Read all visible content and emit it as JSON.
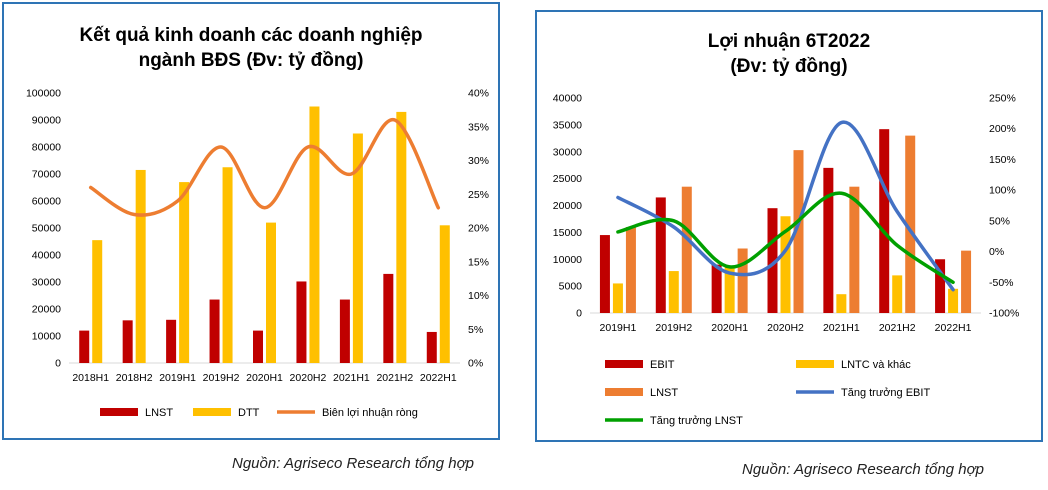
{
  "chart_data": [
    {
      "type": "bar",
      "title_line1": "Kết quả kinh doanh các doanh nghiệp",
      "title_line2": "ngành BĐS (Đv: tỷ đồng)",
      "categories": [
        "2018H1",
        "2018H2",
        "2019H1",
        "2019H2",
        "2020H1",
        "2020H2",
        "2021H1",
        "2021H2",
        "2022H1"
      ],
      "series": [
        {
          "name": "LNST",
          "type": "bar",
          "axis": "left",
          "color": "#C00000",
          "values": [
            12000,
            15800,
            16000,
            23500,
            12000,
            30200,
            23500,
            33000,
            11500
          ]
        },
        {
          "name": "DTT",
          "type": "bar",
          "axis": "left",
          "color": "#FFC000",
          "values": [
            45500,
            71500,
            67000,
            72500,
            52000,
            95000,
            85000,
            93000,
            51000
          ]
        },
        {
          "name": "Biên lợi nhuận ròng",
          "type": "line",
          "axis": "right",
          "color": "#ED7D31",
          "values": [
            0.26,
            0.22,
            0.24,
            0.32,
            0.23,
            0.32,
            0.28,
            0.36,
            0.23
          ]
        }
      ],
      "y_left": {
        "min": 0,
        "max": 100000,
        "ticks": [
          "0",
          "10000",
          "20000",
          "30000",
          "40000",
          "50000",
          "60000",
          "70000",
          "80000",
          "90000",
          "100000"
        ]
      },
      "y_right": {
        "min": 0,
        "max": 0.4,
        "ticks": [
          "0%",
          "5%",
          "10%",
          "15%",
          "20%",
          "25%",
          "30%",
          "35%",
          "40%"
        ]
      },
      "grid": false,
      "legend": "bottom"
    },
    {
      "type": "bar",
      "title_line1": "Lợi nhuận 6T2022",
      "title_line2": "(Đv: tỷ đồng)",
      "categories": [
        "2019H1",
        "2019H2",
        "2020H1",
        "2020H2",
        "2021H1",
        "2021H2",
        "2022H1"
      ],
      "series": [
        {
          "name": "EBIT",
          "type": "bar",
          "axis": "left",
          "color": "#C00000",
          "values": [
            14500,
            21500,
            9000,
            19500,
            27000,
            34200,
            10000
          ]
        },
        {
          "name": "LNTC và khác",
          "type": "bar",
          "axis": "left",
          "color": "#FFC000",
          "values": [
            5500,
            7800,
            8500,
            18000,
            3500,
            7000,
            4500
          ]
        },
        {
          "name": "LNST",
          "type": "bar",
          "axis": "left",
          "color": "#ED7D31",
          "values": [
            16000,
            23500,
            12000,
            30300,
            23500,
            33000,
            11600
          ]
        },
        {
          "name": "Tăng trưởng EBIT",
          "type": "line",
          "axis": "right",
          "color": "#4472C4",
          "values": [
            0.88,
            0.4,
            -0.35,
            0.02,
            2.1,
            0.65,
            -0.62
          ]
        },
        {
          "name": "Tăng trưởng LNST",
          "type": "line",
          "axis": "right",
          "color": "#00A000",
          "values": [
            0.32,
            0.5,
            -0.25,
            0.33,
            0.95,
            0.1,
            -0.5
          ]
        }
      ],
      "y_left": {
        "min": 0,
        "max": 40000,
        "ticks": [
          "0",
          "5000",
          "10000",
          "15000",
          "20000",
          "25000",
          "30000",
          "35000",
          "40000"
        ]
      },
      "y_right": {
        "min": -1,
        "max": 2.5,
        "ticks": [
          "-100%",
          "-50%",
          "0%",
          "50%",
          "100%",
          "150%",
          "200%",
          "250%"
        ]
      },
      "grid": false,
      "legend": "bottom"
    }
  ],
  "sources": {
    "left": "Nguồn: Agriseco Research tổng hợp",
    "right": "Nguồn: Agriseco Research tổng hợp"
  }
}
